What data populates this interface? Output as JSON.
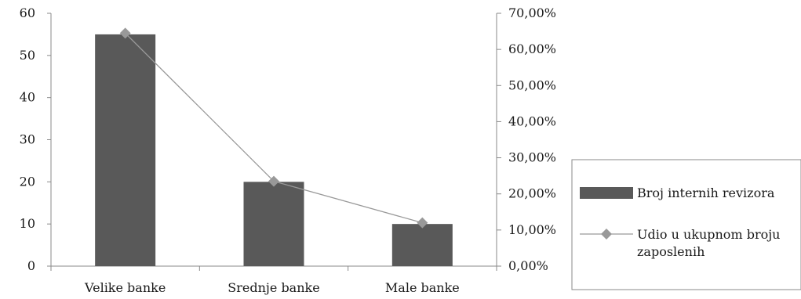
{
  "chart_data": {
    "type": "bar",
    "categories": [
      "Velike banke",
      "Srednje banke",
      "Male banke"
    ],
    "series": [
      {
        "name": "Broj internih revizora",
        "type": "bar",
        "axis": "left",
        "values": [
          55,
          20,
          10
        ],
        "color": "#595959"
      },
      {
        "name": "Udio u ukupnom broju zaposlenih",
        "type": "line",
        "axis": "right",
        "values": [
          64.5,
          23.5,
          12.0
        ],
        "color": "#999999",
        "marker": "diamond"
      }
    ],
    "y_left": {
      "ylim": [
        0,
        60
      ],
      "ticks": [
        "0",
        "10",
        "20",
        "30",
        "40",
        "50",
        "60"
      ]
    },
    "y_right": {
      "ylim": [
        0,
        70
      ],
      "ticks": [
        "0,00%",
        "10,00%",
        "20,00%",
        "30,00%",
        "40,00%",
        "50,00%",
        "60,00%",
        "70,00%"
      ]
    },
    "grid": false,
    "legend_position": "right"
  }
}
